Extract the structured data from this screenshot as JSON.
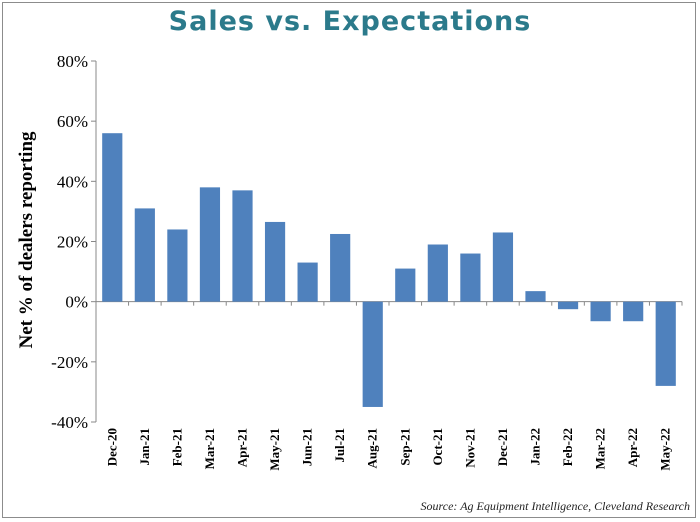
{
  "title": "Sales vs. Expectations",
  "source": "Source: Ag Equipment Intelligence, Cleveland Research",
  "chart_data": {
    "type": "bar",
    "title": "Sales vs. Expectations",
    "xlabel": "",
    "ylabel": "Net % of dealers reporting",
    "ylim": [
      -40,
      80
    ],
    "yticks": [
      80,
      60,
      40,
      20,
      0,
      -20,
      -40
    ],
    "ytick_labels": [
      "80%",
      "60%",
      "40%",
      "20%",
      "0%",
      "-20%",
      "-40%"
    ],
    "categories": [
      "Dec-20",
      "Jan-21",
      "Feb-21",
      "Mar-21",
      "Apr-21",
      "May-21",
      "Jun-21",
      "Jul-21",
      "Aug-21",
      "Sep-21",
      "Oct-21",
      "Nov-21",
      "Dec-21",
      "Jan-22",
      "Feb-22",
      "Mar-22",
      "Apr-22",
      "May-22"
    ],
    "values": [
      56,
      31,
      24,
      38,
      37,
      26.5,
      13,
      22.5,
      -35,
      11,
      19,
      16,
      23,
      3.5,
      -2.5,
      -6.5,
      -6.5,
      -28
    ],
    "grid": false,
    "legend": "none",
    "bar_color": "#4f81bd"
  }
}
